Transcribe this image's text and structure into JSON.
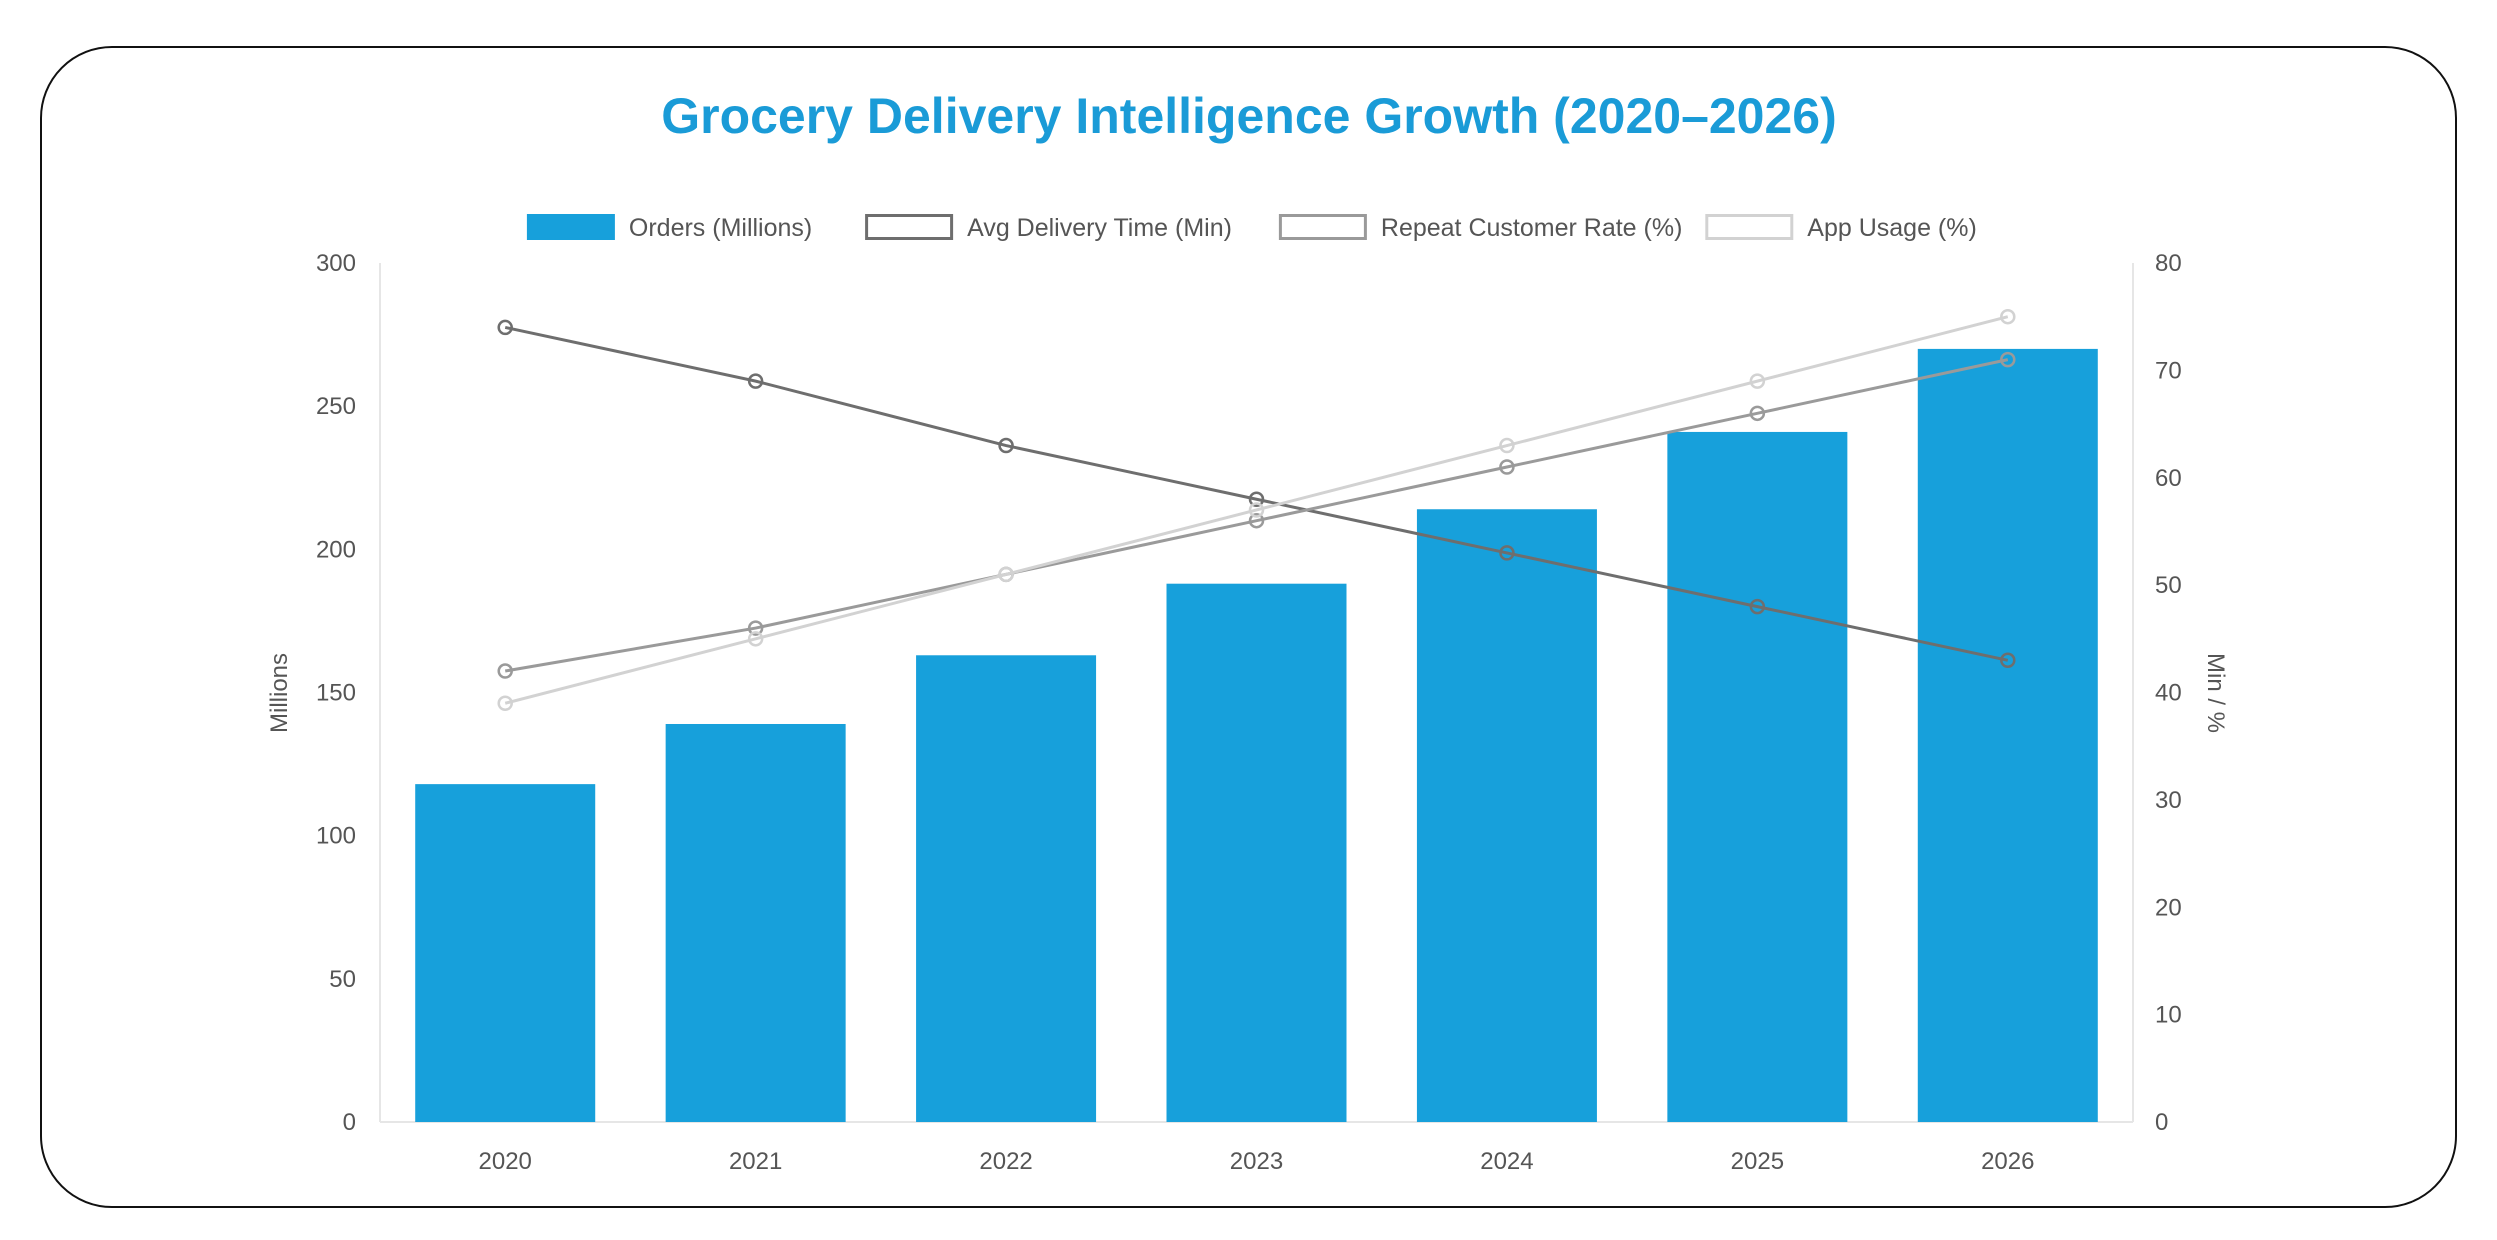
{
  "chart_data": {
    "type": "bar",
    "title": "Grocery Delivery Intelligence Growth (2020–2026)",
    "categories": [
      "2020",
      "2021",
      "2022",
      "2023",
      "2024",
      "2025",
      "2026"
    ],
    "series": [
      {
        "name": "Orders (Millions)",
        "type": "bar",
        "axis": "left",
        "color": "#17a0db",
        "values": [
          118,
          139,
          163,
          188,
          214,
          241,
          270
        ]
      },
      {
        "name": "Avg Delivery Time (Min)",
        "type": "line",
        "axis": "right",
        "color": "#6e6e6e",
        "values": [
          74,
          69,
          63,
          58,
          53,
          48,
          43
        ]
      },
      {
        "name": "Repeat Customer Rate (%)",
        "type": "line",
        "axis": "right",
        "color": "#9a9a9a",
        "values": [
          42,
          46,
          51,
          56,
          61,
          66,
          71
        ]
      },
      {
        "name": "App Usage (%)",
        "type": "line",
        "axis": "right",
        "color": "#d2d2d2",
        "values": [
          39,
          45,
          51,
          57,
          63,
          69,
          75
        ]
      }
    ],
    "yAxisLeft": {
      "label": "Millions",
      "min": 0,
      "max": 300,
      "ticks": [
        "0",
        "50",
        "100",
        "150",
        "200",
        "250",
        "300"
      ]
    },
    "yAxisRight": {
      "label": "Min / %",
      "min": 0,
      "max": 80,
      "ticks": [
        "0",
        "10",
        "20",
        "30",
        "40",
        "50",
        "60",
        "70",
        "80"
      ]
    },
    "legend_position": "top",
    "grid": false,
    "title_color": "#1a9bd7"
  }
}
